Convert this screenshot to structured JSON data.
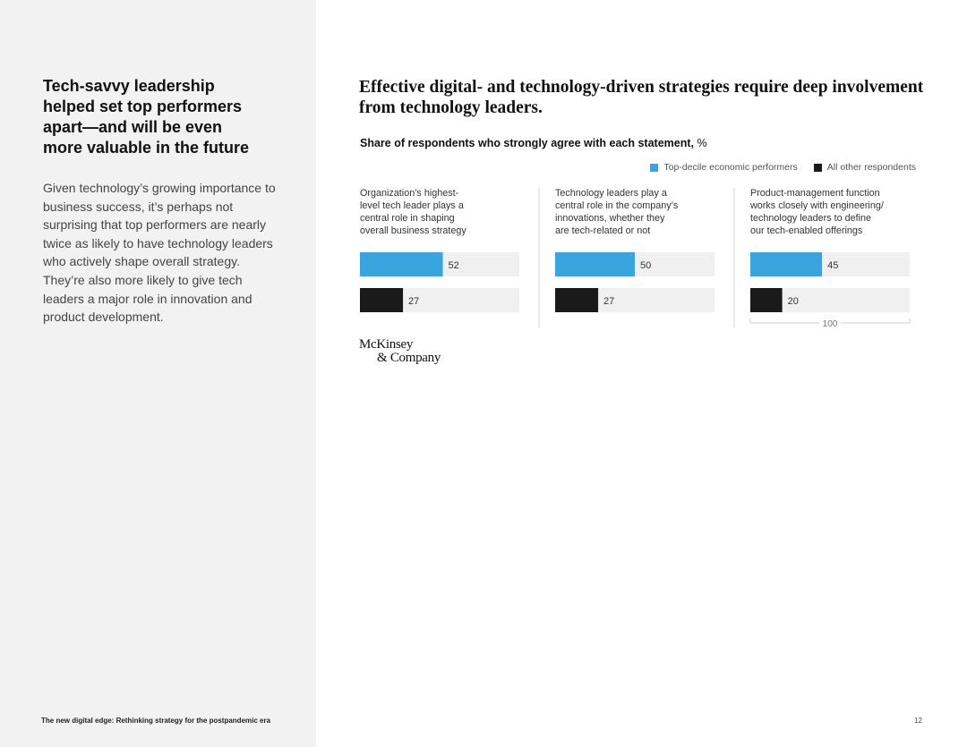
{
  "sidebar": {
    "heading": "Tech-savvy leadership helped set top performers apart—and will be even more valuable in the future",
    "body": "Given technology’s growing importance to business success, it’s perhaps not surprising that top performers are nearly twice as likely to have technology leaders who actively shape overall strategy. They’re also more likely to give tech leaders a major role in innovation and product development."
  },
  "footer": {
    "left": "The new digital edge: Rethinking strategy for the postpandemic era",
    "page_number": "12"
  },
  "logo": {
    "line1": "McKinsey",
    "line2": "& Company"
  },
  "colors": {
    "top": "#3aa4de",
    "other": "#1a1a1a",
    "track": "#f1f0f0"
  },
  "chart_data": {
    "type": "bar",
    "title": "Effective digital- and technology-driven strategies require deep involvement from technology leaders.",
    "subtitle_bold": "Share of respondents who strongly agree with each statement,",
    "subtitle_unit": "%",
    "legend_position": "top-right",
    "xlim": [
      0,
      100
    ],
    "scale_label": "100",
    "series": [
      {
        "name": "Top-decile economic performers",
        "key": "top"
      },
      {
        "name": "All other respondents",
        "key": "other"
      }
    ],
    "panels": [
      {
        "label_lines": [
          "Organization’s highest-",
          "level tech leader plays a",
          "central role in shaping",
          "overall business strategy"
        ],
        "top": 52,
        "other": 27
      },
      {
        "label_lines": [
          "Technology leaders play a",
          "central role in the company’s",
          "innovations, whether they",
          "are tech-related or not"
        ],
        "top": 50,
        "other": 27
      },
      {
        "label_lines": [
          "Product-management function",
          "works closely with engineering/",
          "technology leaders to define",
          "our tech-enabled offerings"
        ],
        "top": 45,
        "other": 20
      }
    ]
  }
}
